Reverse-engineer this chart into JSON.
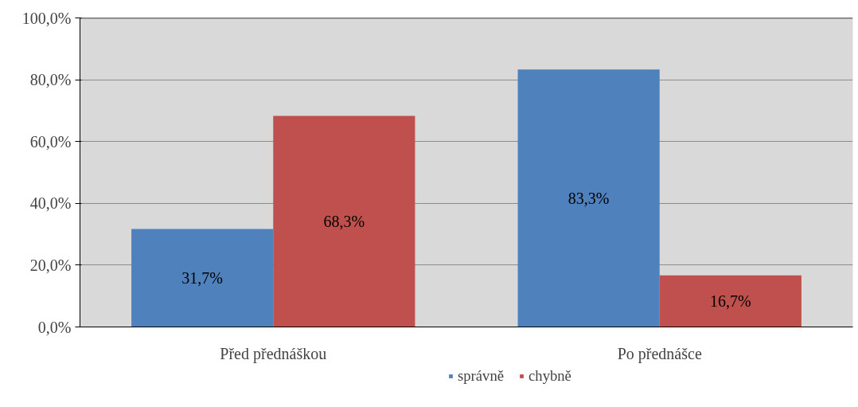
{
  "chart_data": {
    "type": "bar",
    "categories": [
      "Před přednáškou",
      "Po přednášce"
    ],
    "series": [
      {
        "name": "správně",
        "color": "#4f81bd",
        "values": [
          31.7,
          83.3
        ],
        "value_labels": [
          "31,7%",
          "83,3%"
        ]
      },
      {
        "name": "chybně",
        "color": "#c0504d",
        "values": [
          68.3,
          16.7
        ],
        "value_labels": [
          "68,3%",
          "16,7%"
        ]
      }
    ],
    "ylim": [
      0,
      100
    ],
    "yticks": [
      {
        "value": 0,
        "label": "0,0%"
      },
      {
        "value": 20,
        "label": "20,0%"
      },
      {
        "value": 40,
        "label": "40,0%"
      },
      {
        "value": 60,
        "label": "60,0%"
      },
      {
        "value": 80,
        "label": "80,0%"
      },
      {
        "value": 100,
        "label": "100,0%"
      }
    ],
    "grid": "y",
    "legend": "bottom"
  }
}
